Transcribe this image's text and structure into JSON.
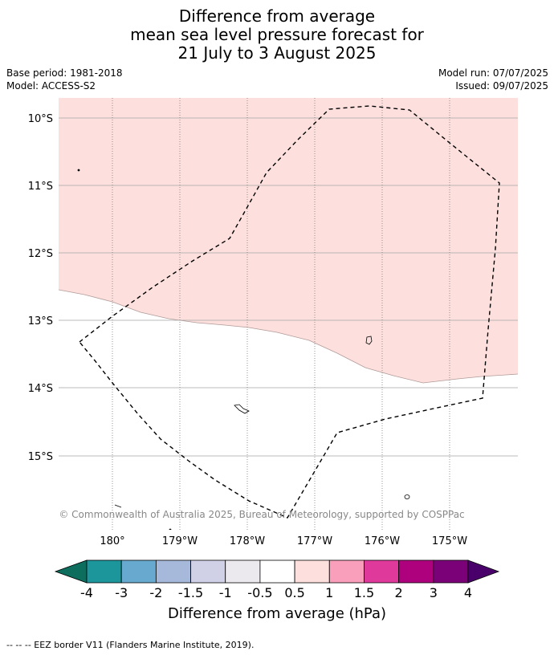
{
  "title": {
    "line1": "Difference from average",
    "line2": "mean sea level pressure forecast for",
    "line3": "21 July to 3 August 2025"
  },
  "meta": {
    "base_period": "Base period: 1981-2018",
    "model": "Model: ACCESS-S2",
    "model_run": "Model run: 07/07/2025",
    "issued": "Issued: 09/07/2025"
  },
  "map": {
    "lat_labels": [
      "10°S",
      "11°S",
      "12°S",
      "13°S",
      "14°S",
      "15°S"
    ],
    "lon_labels": [
      "180°",
      "179°W",
      "178°W",
      "177°W",
      "176°W",
      "175°W"
    ],
    "copyright": "© Commonwealth of Australia 2025, Bureau of Meteorology, supported by COSPPac",
    "shaded_category": "0.5 to 1",
    "shaded_color": "#fde0dd"
  },
  "colorbar": {
    "ticks": [
      "-4",
      "-3",
      "-2",
      "-1.5",
      "-1",
      "-0.5",
      "0.5",
      "1",
      "1.5",
      "2",
      "3",
      "4"
    ],
    "colors": [
      "#0e6e5e",
      "#1c969b",
      "#67a9cf",
      "#a6b9da",
      "#d0d1e6",
      "#ece9ee",
      "#ffffff",
      "#fde0dd",
      "#f99fbb",
      "#df3a9b",
      "#ae017e",
      "#7a0177",
      "#49006a"
    ],
    "label": "Difference from average (hPa)"
  },
  "footer": {
    "legend": "--  --  -- EEZ border V11 (Flanders Marine Institute, 2019)."
  }
}
